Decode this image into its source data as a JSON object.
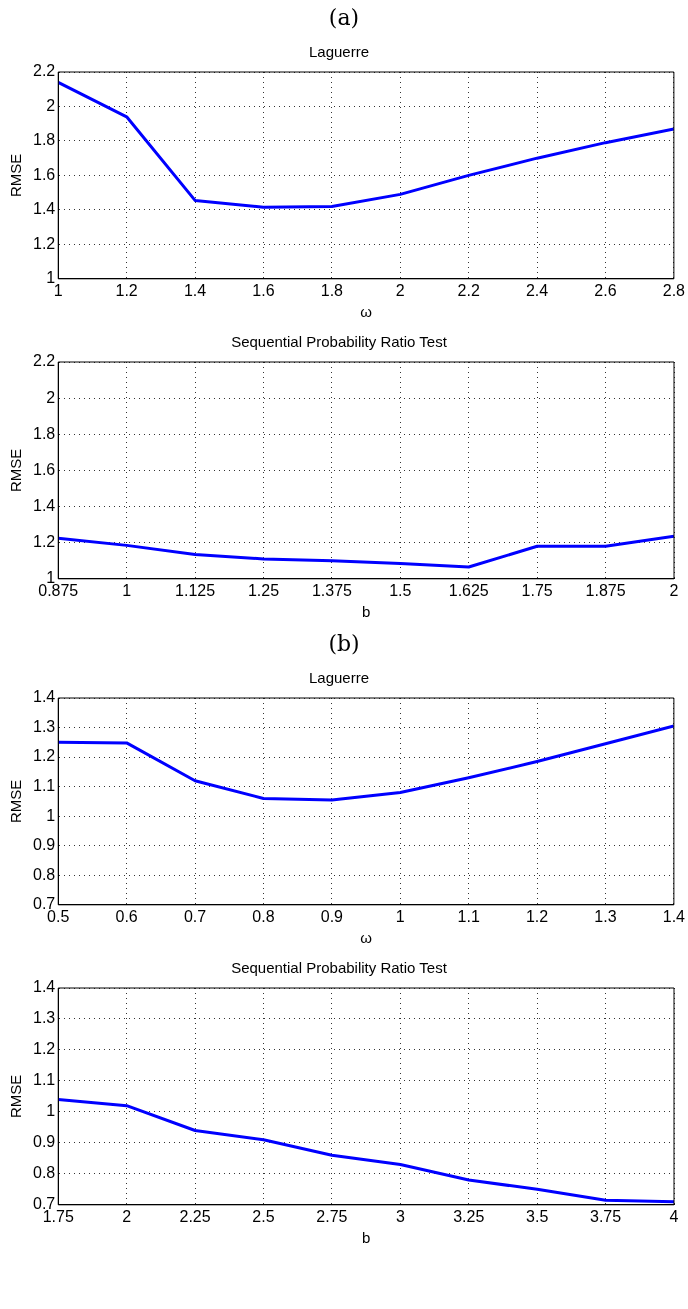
{
  "chart_data": [
    {
      "type": "line",
      "title": "Laguerre",
      "xlabel": "ω",
      "ylabel": "RMSE",
      "annotations": [
        "(a)"
      ],
      "x": [
        1,
        1.2,
        1.4,
        1.6,
        1.8,
        2,
        2.2,
        2.4,
        2.6,
        2.8
      ],
      "series": [
        {
          "color": "#0000ff",
          "values": [
            2.14,
            1.94,
            1.455,
            1.415,
            1.42,
            1.49,
            1.6,
            1.7,
            1.79,
            1.87
          ]
        }
      ],
      "xlim": [
        1,
        2.8
      ],
      "xticks": [
        1,
        1.2,
        1.4,
        1.6,
        1.8,
        2,
        2.2,
        2.4,
        2.6,
        2.8
      ],
      "ylim": [
        1,
        2.2
      ],
      "yticks": [
        1,
        1.2,
        1.4,
        1.6,
        1.8,
        2,
        2.2
      ],
      "grid": true,
      "legend": false,
      "marker": "none",
      "line_style": "solid"
    },
    {
      "type": "line",
      "title": "Sequential Probability Ratio Test",
      "xlabel": "b",
      "ylabel": "RMSE",
      "x": [
        0.875,
        1,
        1.125,
        1.25,
        1.375,
        1.5,
        1.625,
        1.75,
        1.875,
        2
      ],
      "series": [
        {
          "color": "#0000ff",
          "values": [
            1.225,
            1.185,
            1.135,
            1.11,
            1.1,
            1.085,
            1.065,
            1.18,
            1.18,
            1.235
          ]
        }
      ],
      "xlim": [
        0.875,
        2
      ],
      "xticks": [
        0.875,
        1,
        1.125,
        1.25,
        1.375,
        1.5,
        1.625,
        1.75,
        1.875,
        2
      ],
      "ylim": [
        1,
        2.2
      ],
      "yticks": [
        1,
        1.2,
        1.4,
        1.6,
        1.8,
        2,
        2.2
      ],
      "grid": true,
      "legend": false,
      "marker": "none",
      "line_style": "solid"
    },
    {
      "type": "line",
      "title": "Laguerre",
      "xlabel": "ω",
      "ylabel": "RMSE",
      "annotations": [
        "(b)"
      ],
      "x": [
        0.5,
        0.6,
        0.7,
        0.8,
        0.9,
        1,
        1.1,
        1.2,
        1.3,
        1.4
      ],
      "series": [
        {
          "color": "#0000ff",
          "values": [
            1.25,
            1.248,
            1.12,
            1.06,
            1.055,
            1.08,
            1.13,
            1.185,
            1.245,
            1.305
          ]
        }
      ],
      "xlim": [
        0.5,
        1.4
      ],
      "xticks": [
        0.5,
        0.6,
        0.7,
        0.8,
        0.9,
        1,
        1.1,
        1.2,
        1.3,
        1.4
      ],
      "ylim": [
        0.7,
        1.4
      ],
      "yticks": [
        0.7,
        0.8,
        0.9,
        1,
        1.1,
        1.2,
        1.3,
        1.4
      ],
      "grid": true,
      "legend": false,
      "marker": "none",
      "line_style": "solid"
    },
    {
      "type": "line",
      "title": "Sequential Probability Ratio Test",
      "xlabel": "b",
      "ylabel": "RMSE",
      "x": [
        1.75,
        2,
        2.25,
        2.5,
        2.75,
        3,
        3.25,
        3.5,
        3.75,
        4
      ],
      "series": [
        {
          "color": "#0000ff",
          "values": [
            1.04,
            1.02,
            0.94,
            0.91,
            0.86,
            0.83,
            0.78,
            0.75,
            0.715,
            0.71
          ]
        }
      ],
      "xlim": [
        1.75,
        4
      ],
      "xticks": [
        1.75,
        2,
        2.25,
        2.5,
        2.75,
        3,
        3.25,
        3.5,
        3.75,
        4
      ],
      "ylim": [
        0.7,
        1.4
      ],
      "yticks": [
        0.7,
        0.8,
        0.9,
        1,
        1.1,
        1.2,
        1.3,
        1.4
      ],
      "grid": true,
      "legend": false,
      "marker": "none",
      "line_style": "solid"
    }
  ]
}
